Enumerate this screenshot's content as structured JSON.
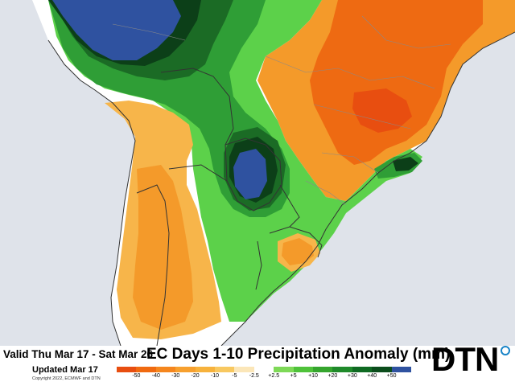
{
  "title": "EC Days 1-10 Precipitation Anomaly (mm)",
  "valid": "Valid Thu Mar 17 - Sat Mar 26",
  "updated": "Updated Mar 17",
  "copyright": "Copyright 2022, ECMWF and DTN",
  "logo": "DTN",
  "legend": {
    "labels": [
      "-50",
      "-40",
      "-30",
      "-20",
      "-10",
      "-5",
      "-2.5",
      "+2.5",
      "+5",
      "+10",
      "+20",
      "+30",
      "+40",
      "+50"
    ],
    "colors": [
      "#e84e10",
      "#f06a10",
      "#f5861e",
      "#f7a02e",
      "#f7b23c",
      "#f8c860",
      "#fbe6b8",
      "#ffffff",
      "#7ed957",
      "#4fc23a",
      "#35a52d",
      "#1f8a2a",
      "#0f6a22",
      "#0b4d1c",
      "#2f52a0"
    ]
  },
  "colors": {
    "ocean": "#dfe3ea",
    "land": "#ffffff",
    "orange_deep": "#ee6a12",
    "orange_mid": "#f49a2a",
    "orange_light": "#f7b54a",
    "green_light": "#5cd14a",
    "green_mid": "#2f9e36",
    "green_dark": "#1b6b25",
    "green_deep": "#0c3f18",
    "blue": "#2f52a0"
  }
}
